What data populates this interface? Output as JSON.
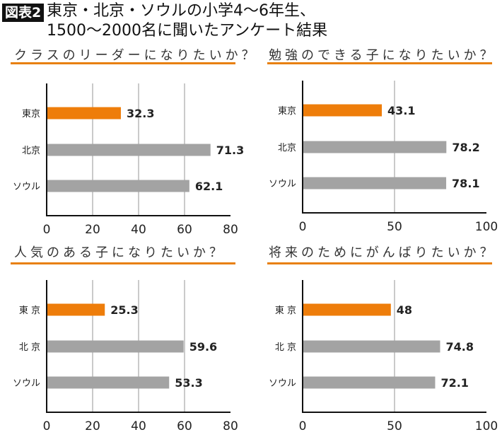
{
  "header": {
    "badge": "図表2",
    "title_line1": "東京・北京・ソウルの小学4～6年生、",
    "title_line2": "1500～2000名に聞いたアンケート結果"
  },
  "colors": {
    "highlight": "#ee7d0a",
    "bar": "#a3a3a3",
    "underline": "#e8800f",
    "grid": "#b8b8b8"
  },
  "chart_data": [
    {
      "type": "bar",
      "orientation": "horizontal",
      "title": "クラスのリーダーになりたいか？",
      "categories": [
        "東京",
        "北京",
        "ソウル"
      ],
      "values": [
        32.3,
        71.3,
        62.1
      ],
      "labels": [
        "32.3",
        "71.3",
        "62.1"
      ],
      "xlim": [
        0,
        80
      ],
      "ticks": [
        0,
        20,
        40,
        60,
        80
      ],
      "grid": true
    },
    {
      "type": "bar",
      "orientation": "horizontal",
      "title": "勉強のできる子になりたいか？",
      "categories": [
        "東京",
        "北京",
        "ソウル"
      ],
      "values": [
        43.1,
        78.2,
        78.1
      ],
      "labels": [
        "43.1",
        "78.2",
        "78.1"
      ],
      "xlim": [
        0,
        100
      ],
      "ticks": [
        0,
        50,
        100
      ],
      "grid": true
    },
    {
      "type": "bar",
      "orientation": "horizontal",
      "title": "人気のある子になりたいか？",
      "categories": [
        "東 京",
        "北 京",
        "ソウル"
      ],
      "values": [
        25.3,
        59.6,
        53.3
      ],
      "labels": [
        "25.3",
        "59.6",
        "53.3"
      ],
      "xlim": [
        0,
        80
      ],
      "ticks": [
        0,
        20,
        40,
        60,
        80
      ],
      "grid": true
    },
    {
      "type": "bar",
      "orientation": "horizontal",
      "title": "将来のためにがんばりたいか？",
      "categories": [
        "東 京",
        "北 京",
        "ソウル"
      ],
      "values": [
        48,
        74.8,
        72.1
      ],
      "labels": [
        "48",
        "74.8",
        "72.1"
      ],
      "xlim": [
        0,
        100
      ],
      "ticks": [
        0,
        50,
        100
      ],
      "grid": true
    }
  ]
}
